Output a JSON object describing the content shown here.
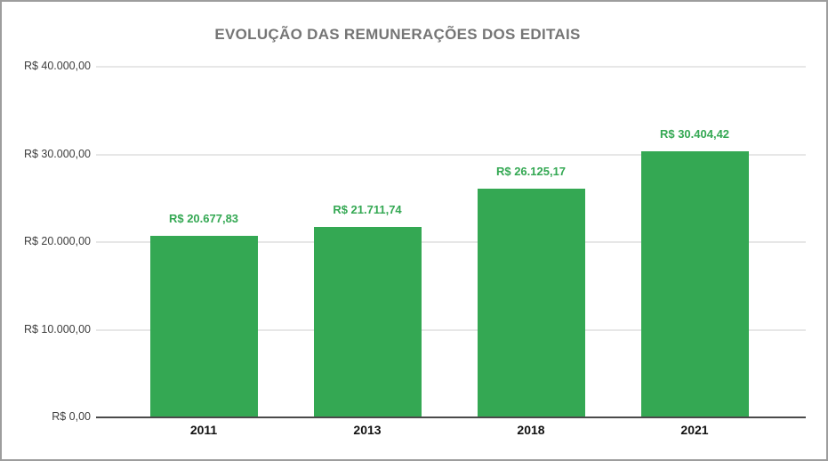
{
  "chart_data": {
    "type": "bar",
    "title": "EVOLUÇÃO DAS REMUNERAÇÕES DOS EDITAIS",
    "categories": [
      "2011",
      "2013",
      "2018",
      "2021"
    ],
    "values": [
      20677.83,
      21711.74,
      26125.17,
      30404.42
    ],
    "value_labels": [
      "R$ 20.677,83",
      "R$ 21.711,74",
      "R$ 26.125,17",
      "R$ 30.404,42"
    ],
    "y_ticks": [
      {
        "value": 0,
        "label": "R$ 0,00"
      },
      {
        "value": 10000,
        "label": "R$ 10.000,00"
      },
      {
        "value": 20000,
        "label": "R$ 20.000,00"
      },
      {
        "value": 30000,
        "label": "R$ 30.000,00"
      },
      {
        "value": 40000,
        "label": "R$ 40.000,00"
      }
    ],
    "ylim": [
      0,
      40000
    ],
    "xlabel": "",
    "ylabel": "",
    "grid": true,
    "legend": "none",
    "bar_color": "#34a853",
    "value_label_color": "#34a853",
    "title_color": "#757575"
  }
}
